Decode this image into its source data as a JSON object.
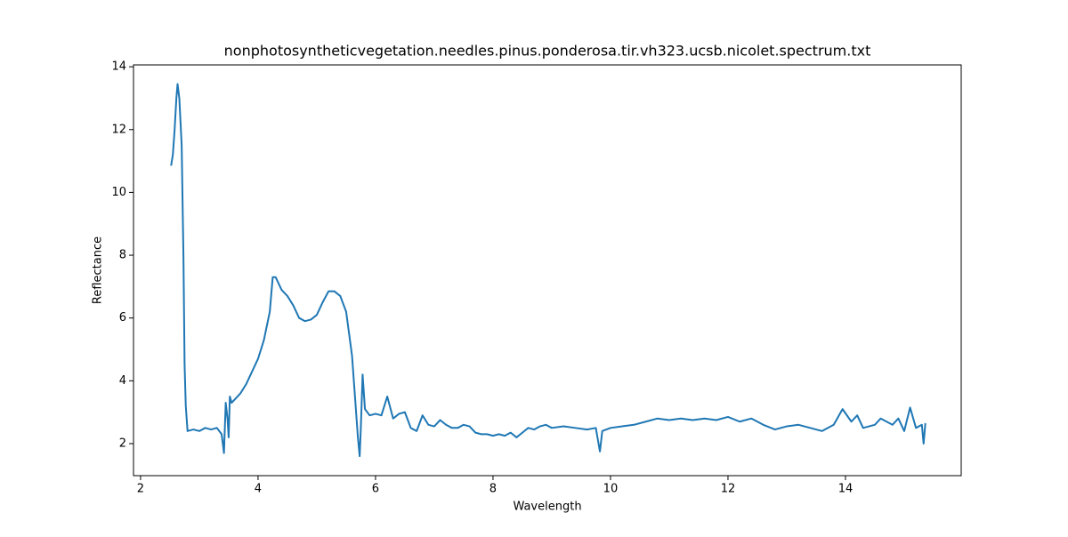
{
  "chart_data": {
    "type": "line",
    "title": "nonphotosyntheticvegetation.needles.pinus.ponderosa.tir.vh323.ucsb.nicolet.spectrum.txt",
    "x_label": "Wavelength",
    "y_label": "Reflectance",
    "xlim": [
      1.88,
      15.97
    ],
    "ylim": [
      0.98,
      14.06
    ],
    "xticks": [
      2,
      4,
      6,
      8,
      10,
      12,
      14
    ],
    "yticks": [
      2,
      4,
      6,
      8,
      10,
      12,
      14
    ],
    "grid": false,
    "series": [
      {
        "name": "Reflectance",
        "color": "#1f77b4",
        "x": [
          2.52,
          2.55,
          2.58,
          2.61,
          2.63,
          2.66,
          2.7,
          2.73,
          2.75,
          2.77,
          2.8,
          2.9,
          3.0,
          3.1,
          3.2,
          3.3,
          3.38,
          3.42,
          3.45,
          3.48,
          3.5,
          3.52,
          3.55,
          3.6,
          3.7,
          3.8,
          3.9,
          4.0,
          4.1,
          4.2,
          4.25,
          4.3,
          4.4,
          4.5,
          4.6,
          4.7,
          4.8,
          4.9,
          5.0,
          5.1,
          5.2,
          5.3,
          5.4,
          5.5,
          5.6,
          5.65,
          5.7,
          5.73,
          5.75,
          5.78,
          5.82,
          5.9,
          6.0,
          6.1,
          6.2,
          6.3,
          6.4,
          6.5,
          6.6,
          6.7,
          6.8,
          6.9,
          7.0,
          7.1,
          7.2,
          7.3,
          7.4,
          7.5,
          7.6,
          7.7,
          7.8,
          7.9,
          8.0,
          8.1,
          8.2,
          8.3,
          8.4,
          8.5,
          8.6,
          8.7,
          8.8,
          8.9,
          9.0,
          9.2,
          9.4,
          9.6,
          9.75,
          9.82,
          9.86,
          10.0,
          10.2,
          10.4,
          10.6,
          10.8,
          11.0,
          11.2,
          11.4,
          11.6,
          11.8,
          12.0,
          12.2,
          12.4,
          12.6,
          12.8,
          13.0,
          13.2,
          13.4,
          13.6,
          13.8,
          13.95,
          14.1,
          14.2,
          14.3,
          14.5,
          14.6,
          14.8,
          14.9,
          15.0,
          15.1,
          15.2,
          15.3,
          15.33,
          15.36
        ],
        "values": [
          10.85,
          11.2,
          12.0,
          13.0,
          13.45,
          13.0,
          11.5,
          8,
          4.5,
          3.2,
          2.4,
          2.45,
          2.4,
          2.5,
          2.45,
          2.5,
          2.3,
          1.7,
          3.3,
          2.8,
          2.2,
          3.5,
          3.3,
          3.4,
          3.6,
          3.9,
          4.3,
          4.7,
          5.3,
          6.2,
          7.3,
          7.3,
          6.9,
          6.7,
          6.4,
          6.0,
          5.9,
          5.95,
          6.1,
          6.5,
          6.85,
          6.85,
          6.7,
          6.2,
          4.8,
          3.5,
          2.2,
          1.6,
          2.5,
          4.2,
          3.1,
          2.9,
          2.95,
          2.9,
          3.5,
          2.8,
          2.95,
          3.0,
          2.5,
          2.4,
          2.9,
          2.6,
          2.55,
          2.75,
          2.6,
          2.5,
          2.5,
          2.6,
          2.55,
          2.35,
          2.3,
          2.3,
          2.25,
          2.3,
          2.25,
          2.35,
          2.2,
          2.35,
          2.5,
          2.45,
          2.55,
          2.6,
          2.5,
          2.55,
          2.5,
          2.45,
          2.5,
          1.75,
          2.4,
          2.5,
          2.55,
          2.6,
          2.7,
          2.8,
          2.75,
          2.8,
          2.75,
          2.8,
          2.75,
          2.85,
          2.7,
          2.8,
          2.6,
          2.45,
          2.55,
          2.6,
          2.5,
          2.4,
          2.6,
          3.1,
          2.7,
          2.9,
          2.5,
          2.6,
          2.8,
          2.6,
          2.8,
          2.4,
          3.15,
          2.5,
          2.6,
          2.0,
          2.65
        ]
      }
    ]
  }
}
